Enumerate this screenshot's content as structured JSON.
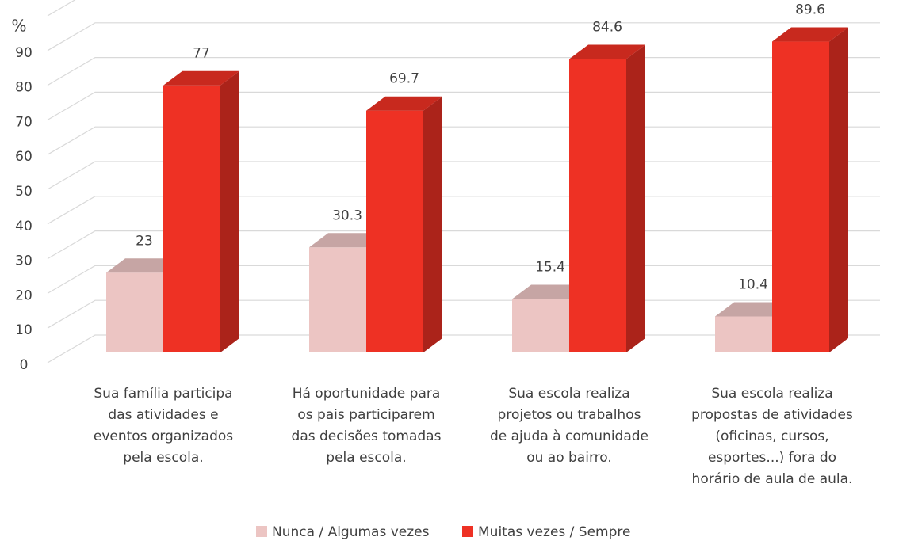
{
  "chart_data": {
    "type": "bar3d",
    "y_label": "%",
    "categories": [
      "Sua família participa\ndas atividades e\neventos organizados\npela escola.",
      "Há oportunidade para\nos pais participarem\ndas decisões tomadas\npela escola.",
      "Sua escola realiza\nprojetos ou trabalhos\nde ajuda à comunidade\nou ao bairro.",
      "Sua escola realiza\npropostas de atividades\n(oficinas, cursos,\nesportes...) fora do\nhorário de aula de aula."
    ],
    "series": [
      {
        "name": "Nunca / Algumas vezes",
        "color": "#ecc5c3",
        "values": [
          23,
          30.3,
          15.4,
          10.4
        ]
      },
      {
        "name": "Muitas vezes / Sempre",
        "color": "#ee3124",
        "values": [
          77,
          69.7,
          84.6,
          89.6
        ]
      }
    ],
    "ylim": [
      0,
      100
    ],
    "yticks": [
      0,
      10,
      20,
      30,
      40,
      50,
      60,
      70,
      80,
      90
    ],
    "grid": true,
    "legend": "bottom"
  }
}
